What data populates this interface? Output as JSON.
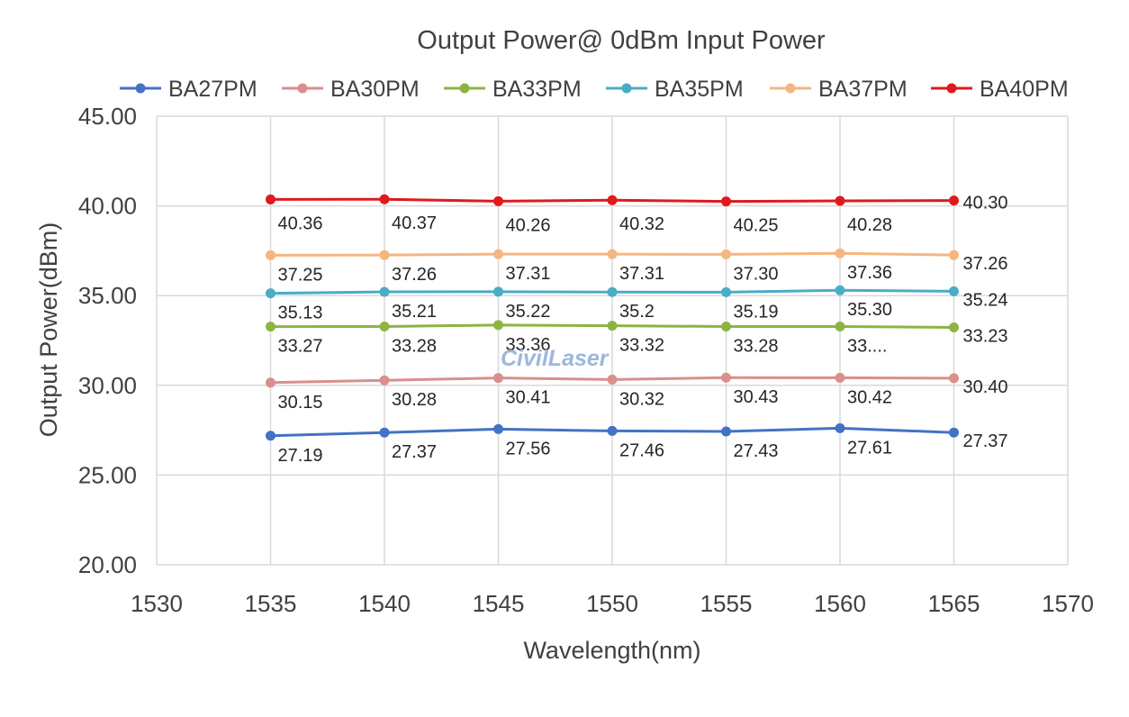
{
  "chart_data": {
    "type": "line",
    "title": "Output Power@ 0dBm Input Power",
    "xlabel": "Wavelength(nm)",
    "ylabel": "Output Power(dBm)",
    "xlim": [
      1530,
      1570
    ],
    "ylim": [
      20,
      45
    ],
    "x_ticks": [
      "1530",
      "1535",
      "1540",
      "1545",
      "1550",
      "1555",
      "1560",
      "1565",
      "1570"
    ],
    "y_ticks": [
      "20.00",
      "25.00",
      "30.00",
      "35.00",
      "40.00",
      "45.00"
    ],
    "grid": true,
    "legend_position": "top",
    "x": [
      1535,
      1540,
      1545,
      1550,
      1555,
      1560,
      1565
    ],
    "series": [
      {
        "name": "BA27PM",
        "color": "#4472c4",
        "values": [
          27.19,
          27.37,
          27.56,
          27.46,
          27.43,
          27.61,
          27.37
        ],
        "labels": [
          "27.19",
          "27.37",
          "27.56",
          "27.46",
          "27.43",
          "27.61",
          "27.37"
        ]
      },
      {
        "name": "BA30PM",
        "color": "#d98f8c",
        "values": [
          30.15,
          30.28,
          30.41,
          30.32,
          30.43,
          30.42,
          30.4
        ],
        "labels": [
          "30.15",
          "30.28",
          "30.41",
          "30.32",
          "30.43",
          "30.42",
          "30.40"
        ]
      },
      {
        "name": "BA33PM",
        "color": "#8db443",
        "values": [
          33.27,
          33.28,
          33.36,
          33.32,
          33.28,
          33.28,
          33.23
        ],
        "labels": [
          "33.27",
          "33.28",
          "33.36",
          "33.32",
          "33.28",
          "33....",
          "33.23"
        ]
      },
      {
        "name": "BA35PM",
        "color": "#4bacc6",
        "values": [
          35.13,
          35.21,
          35.22,
          35.2,
          35.19,
          35.3,
          35.24
        ],
        "labels": [
          "35.13",
          "35.21",
          "35.22",
          "35.2",
          "35.19",
          "35.30",
          "35.24"
        ]
      },
      {
        "name": "BA37PM",
        "color": "#f5b67f",
        "values": [
          37.25,
          37.26,
          37.31,
          37.31,
          37.3,
          37.36,
          37.26
        ],
        "labels": [
          "37.25",
          "37.26",
          "37.31",
          "37.31",
          "37.30",
          "37.36",
          "37.26"
        ]
      },
      {
        "name": "BA40PM",
        "color": "#e0191c",
        "values": [
          40.36,
          40.37,
          40.26,
          40.32,
          40.25,
          40.28,
          40.3
        ],
        "labels": [
          "40.36",
          "40.37",
          "40.26",
          "40.32",
          "40.25",
          "40.28",
          "40.30"
        ]
      }
    ]
  },
  "watermark": {
    "text": "CivilLaser"
  }
}
